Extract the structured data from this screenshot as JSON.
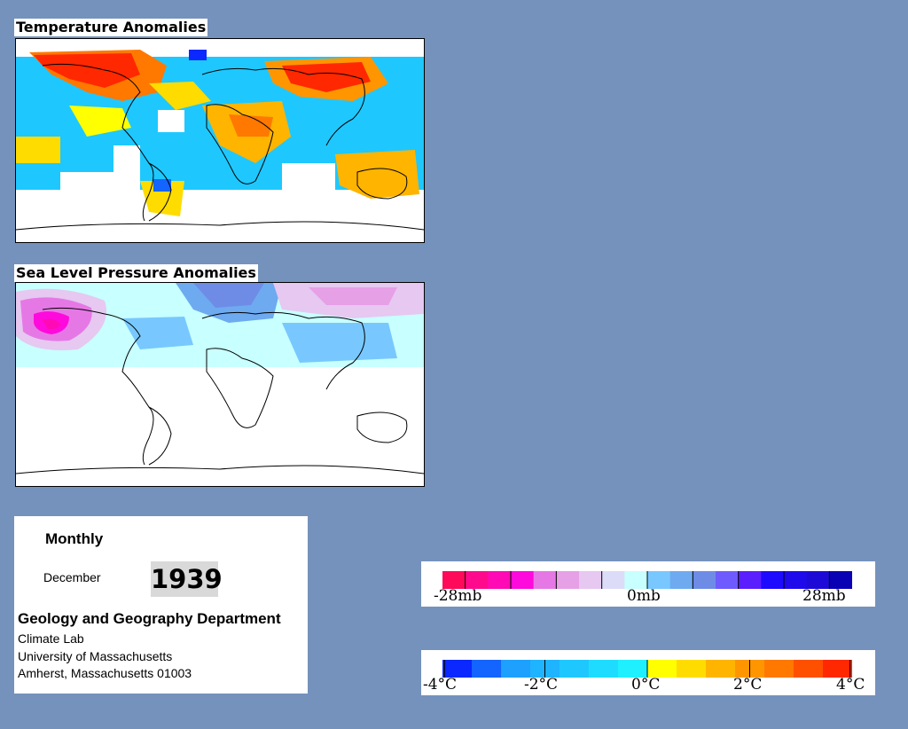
{
  "temperature_panel": {
    "title": "Temperature Anomalies"
  },
  "pressure_panel": {
    "title": "Sea Level Pressure Anomalies"
  },
  "info": {
    "frequency": "Monthly",
    "month": "December",
    "year": "1939",
    "department": "Geology and Geography Department",
    "lab": "Climate Lab",
    "university": "University of Massachusetts",
    "address": "Amherst, Massachusetts 01003"
  },
  "pressure_legend": {
    "colors": [
      "#ff0a5a",
      "#ff0a8c",
      "#ff0ab4",
      "#ff0adc",
      "#e678e6",
      "#e6a0e6",
      "#e6c8f0",
      "#dcdcf8",
      "#c8ffff",
      "#78c8ff",
      "#6eaaf0",
      "#6e8ce6",
      "#6e5aff",
      "#5a1eff",
      "#1e0aff",
      "#1e0aeb",
      "#1e0ad7",
      "#0a00b4"
    ],
    "ticks": [
      "-28mb",
      "0mb",
      "28mb"
    ]
  },
  "temperature_legend": {
    "colors": [
      "#0a28ff",
      "#1464ff",
      "#1ea0ff",
      "#1eb4ff",
      "#1ec8ff",
      "#1edcff",
      "#1ef0ff",
      "#ffff00",
      "#ffdc00",
      "#ffb400",
      "#ff9600",
      "#ff7800",
      "#ff5000",
      "#ff2800"
    ],
    "ticks": [
      "-4°C",
      "-2°C",
      "0°C",
      "2°C",
      "4°C"
    ]
  }
}
